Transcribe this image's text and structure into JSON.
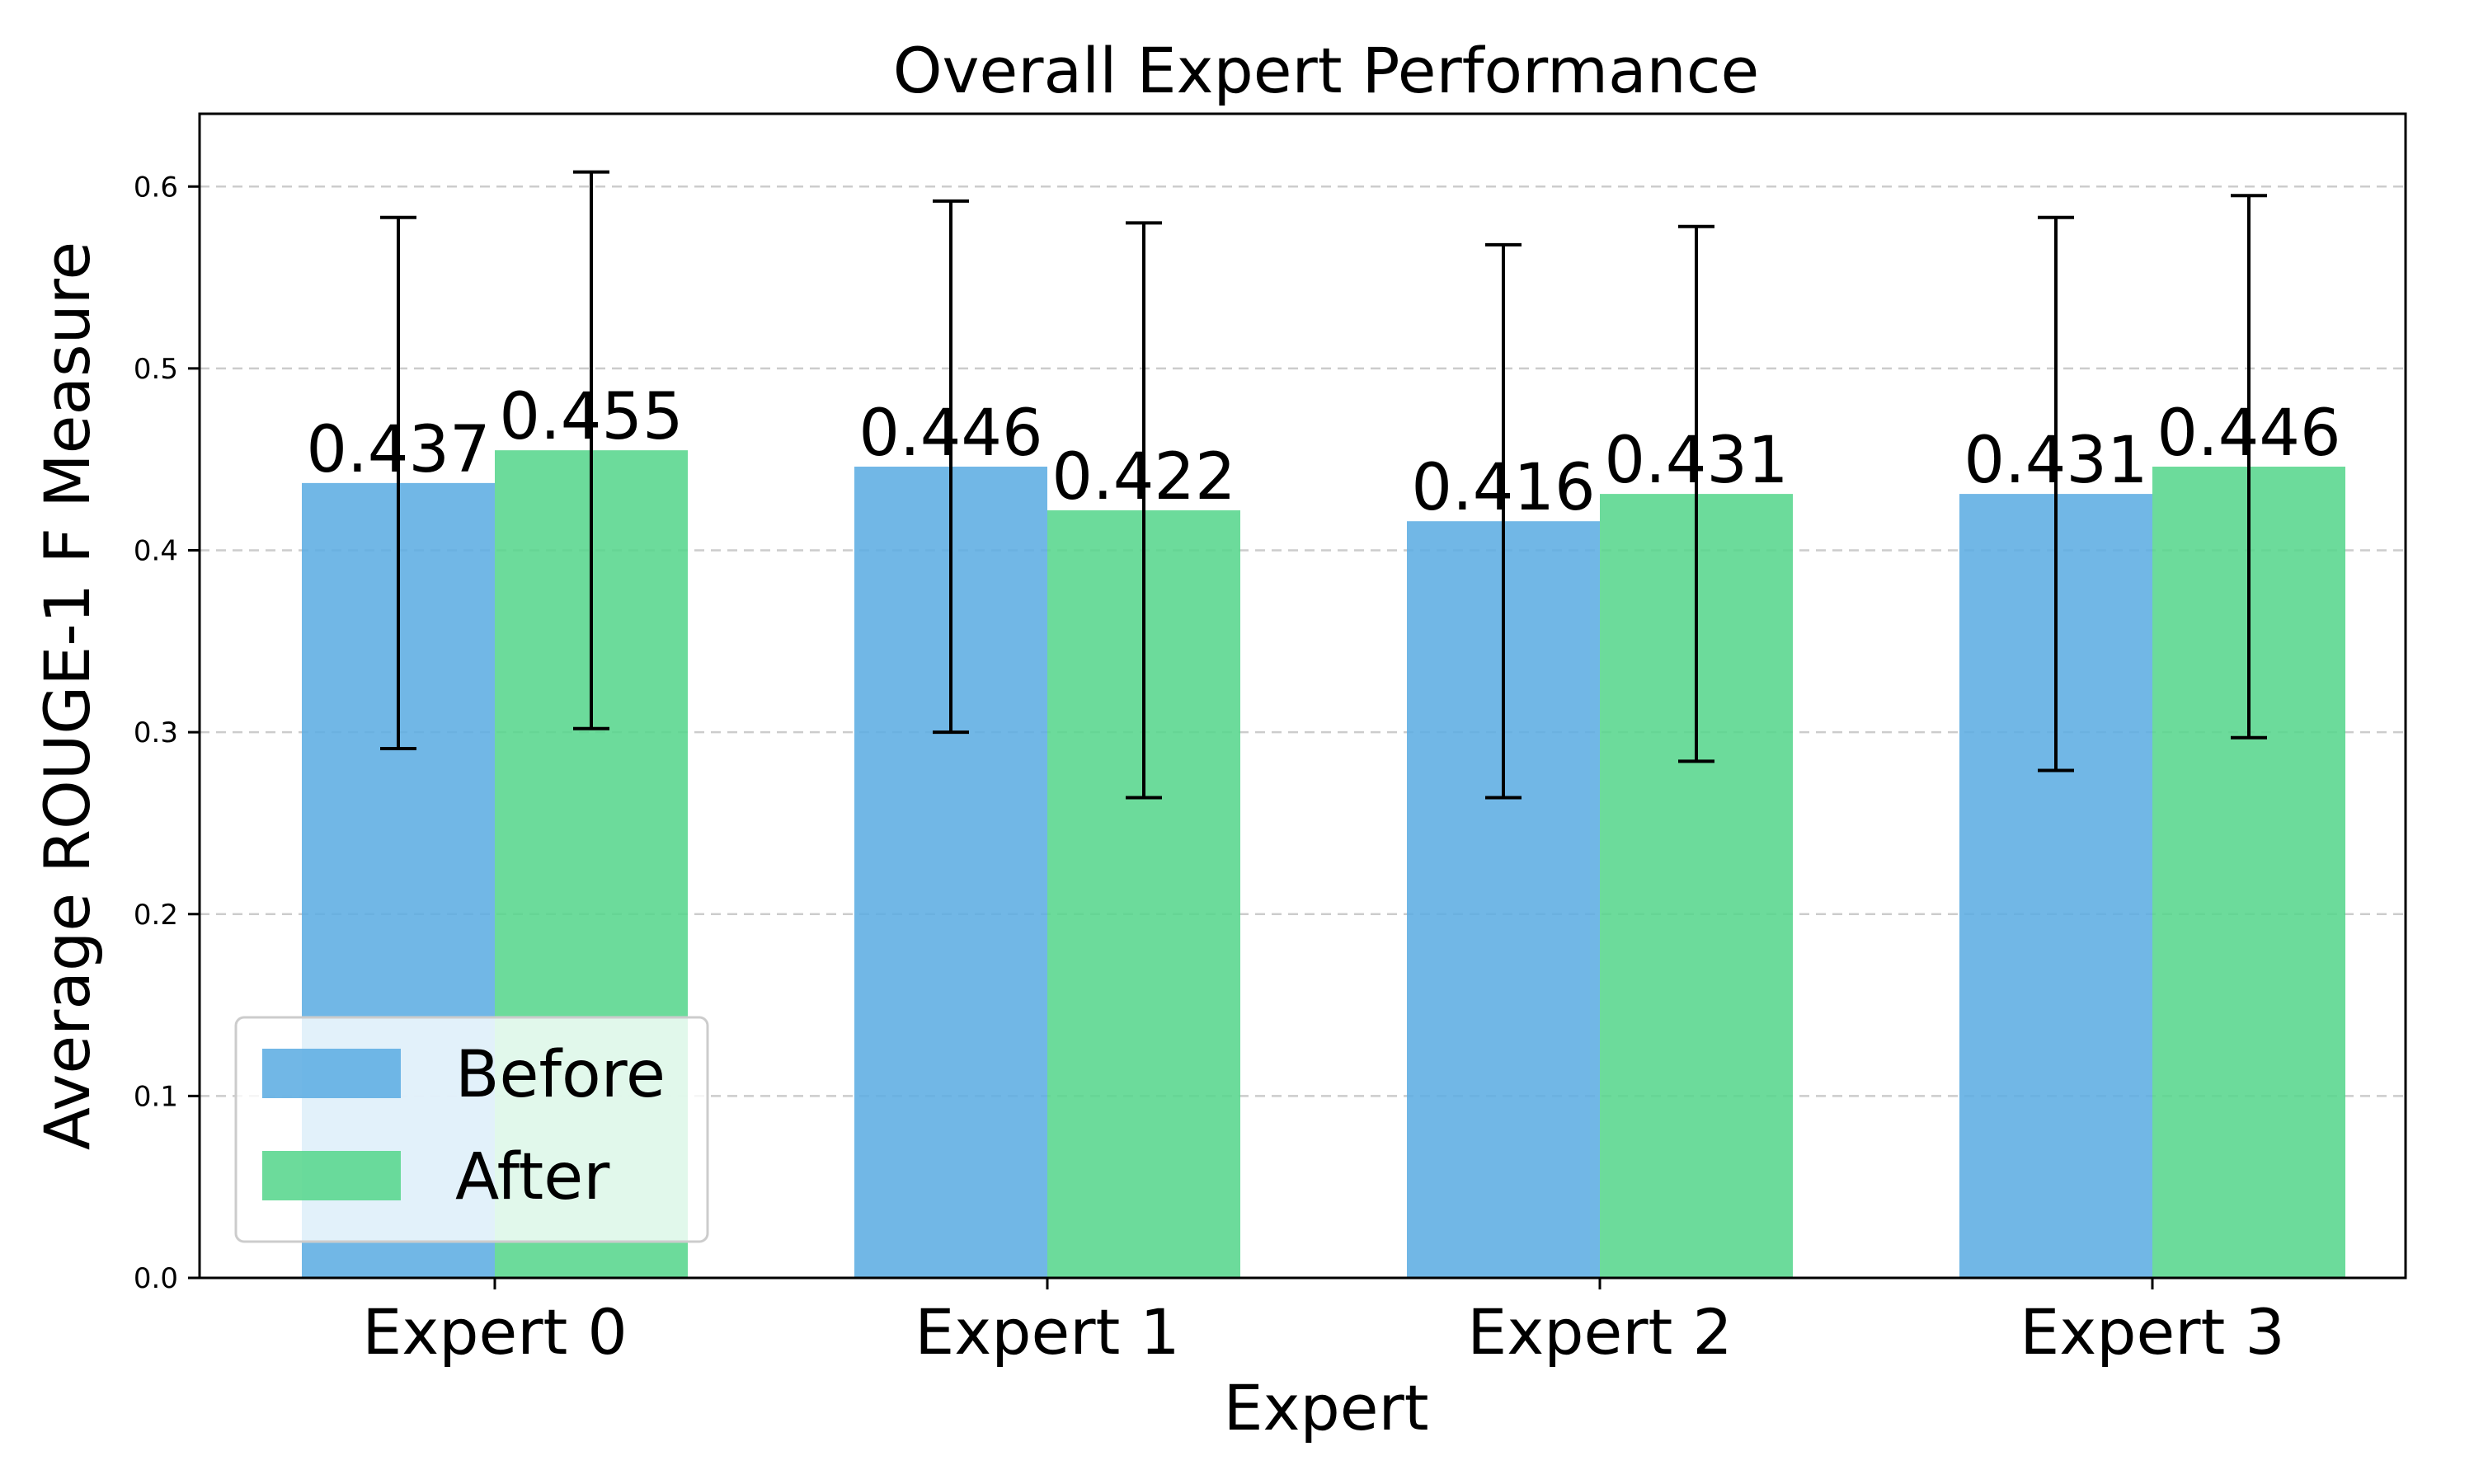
{
  "chart_data": {
    "type": "bar",
    "title": "Overall Expert Performance",
    "xlabel": "Expert",
    "ylabel": "Average ROUGE-1 F Measure",
    "categories": [
      "Expert 0",
      "Expert 1",
      "Expert 2",
      "Expert 3"
    ],
    "series": [
      {
        "name": "Before",
        "values": [
          0.437,
          0.446,
          0.416,
          0.431
        ],
        "errors": [
          0.146,
          0.146,
          0.152,
          0.152
        ],
        "labels": [
          "0.437",
          "0.446",
          "0.416",
          "0.431"
        ],
        "color": "#5DADE2"
      },
      {
        "name": "After",
        "values": [
          0.455,
          0.422,
          0.431,
          0.446
        ],
        "errors": [
          0.153,
          0.158,
          0.147,
          0.149
        ],
        "labels": [
          "0.455",
          "0.422",
          "0.431",
          "0.446"
        ],
        "color": "#58D68D"
      }
    ],
    "ylim": [
      0,
      0.64
    ],
    "yticks": [
      0.0,
      0.1,
      0.2,
      0.3,
      0.4,
      0.5,
      0.6
    ],
    "ytick_labels": [
      "0.0",
      "0.1",
      "0.2",
      "0.3",
      "0.4",
      "0.5",
      "0.6"
    ],
    "grid": "y-dashed",
    "legend_position": "lower-left"
  }
}
